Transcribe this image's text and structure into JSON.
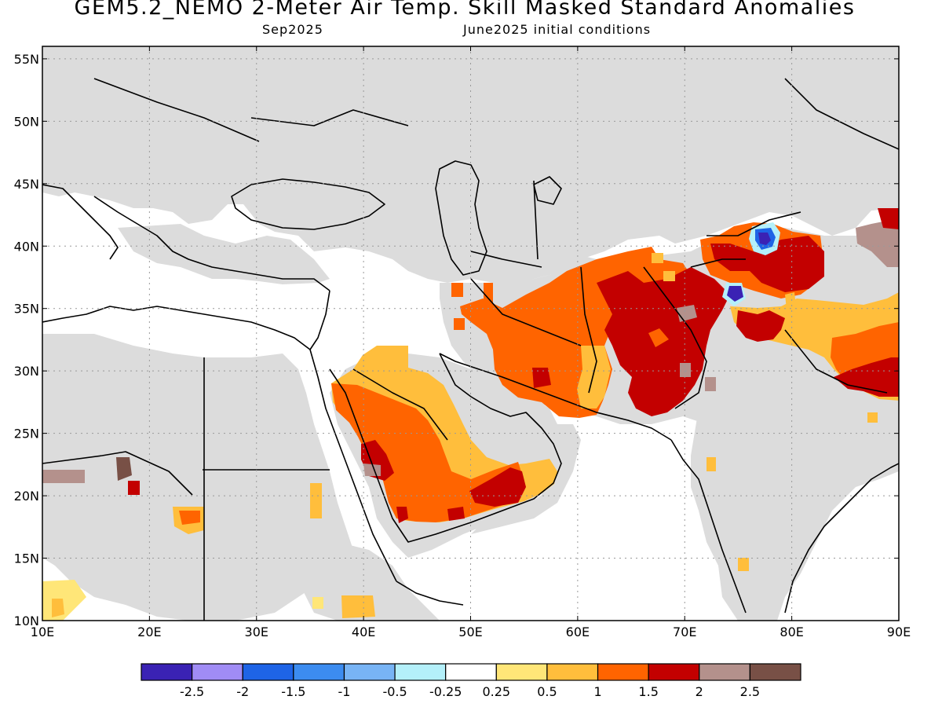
{
  "header": {
    "title": "GEM5.2_NEMO 2-Meter Air Temp. Skill Masked Standard Anomalies",
    "valid_month": "Sep2025",
    "initial_conditions": "June2025 initial conditions"
  },
  "map": {
    "lon_range": [
      10,
      90
    ],
    "lat_range": [
      10,
      56
    ],
    "lon_ticks": [
      "10E",
      "20E",
      "30E",
      "40E",
      "50E",
      "60E",
      "70E",
      "80E",
      "90E"
    ],
    "lat_ticks": [
      "10N",
      "15N",
      "20N",
      "25N",
      "30N",
      "35N",
      "40N",
      "45N",
      "50N",
      "55N"
    ],
    "masked_color": "#dcdcdc",
    "coast_color": "#000000",
    "grid": "dotted"
  },
  "colorbar": {
    "colors": [
      "#3a22b4",
      "#a08cf5",
      "#1e64e6",
      "#3c8cf0",
      "#78b4f5",
      "#b4f0fa",
      "#ffffff",
      "#ffe678",
      "#ffbe3c",
      "#ff6400",
      "#c30000",
      "#b4918c",
      "#785046"
    ],
    "labels": [
      "-2.5",
      "-2",
      "-1.5",
      "-1",
      "-0.5",
      "-0.25",
      "0.25",
      "0.5",
      "1",
      "1.5",
      "2",
      "2.5"
    ]
  }
}
